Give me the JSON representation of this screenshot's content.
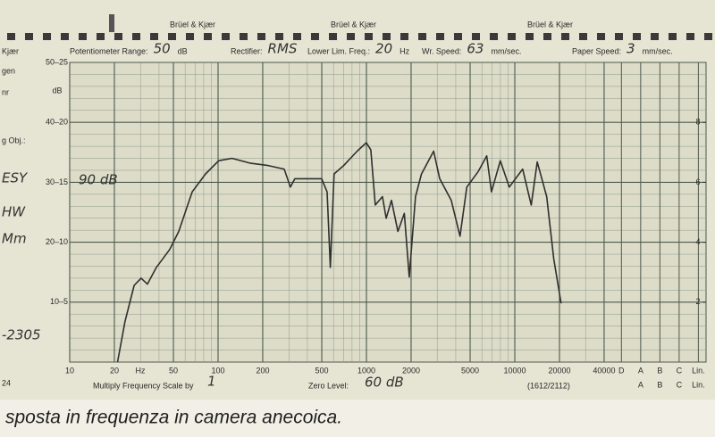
{
  "header": {
    "brands": [
      "Brüel & Kjær",
      "Brüel & Kjær",
      "Brüel & Kjær"
    ],
    "settings": [
      {
        "label": "Potentiometer Range:",
        "value": "50",
        "unit": "dB"
      },
      {
        "label": "Rectifier:",
        "value": "RMS"
      },
      {
        "label": "Lower Lim. Freq.:",
        "value": "20",
        "unit": "Hz"
      },
      {
        "label": "Wr. Speed:",
        "value": "63",
        "unit": "mm/sec."
      },
      {
        "label": "Paper Speed:",
        "value": "3",
        "unit": "mm/sec."
      }
    ]
  },
  "margin_notes": [
    "Kjær",
    "gen",
    "nr",
    "g Obj.:",
    "ESY",
    "HW",
    "Mm",
    "-2305",
    "24"
  ],
  "footer": {
    "multiply_label": "Multiply Frequency Scale by",
    "multiply_value": "1",
    "zero_label": "Zero Level:",
    "zero_value": "60 dB",
    "code": "(1612/2112)"
  },
  "caption": "sposta in frequenza in camera anecoica.",
  "chart_data": {
    "type": "line",
    "annotation": "90 dB",
    "log_x": true,
    "grid": true,
    "color": "#2f2f2f",
    "x": [
      21,
      23.6,
      27.2,
      30.3,
      33.4,
      38.4,
      47.2,
      54.3,
      66.9,
      82.3,
      101,
      124,
      164,
      217,
      279,
      307,
      329,
      499,
      543,
      571,
      605,
      703,
      866,
      998,
      1070,
      1147,
      1282,
      1359,
      1475,
      1630,
      1800,
      1943,
      2142,
      2350,
      2837,
      3120,
      3730,
      4275,
      4750,
      5670,
      6470,
      6960,
      7990,
      9170,
      11300,
      12900,
      14170,
      16400,
      18300,
      20500
    ],
    "values": [
      0,
      3.4,
      6.4,
      7.0,
      6.5,
      7.9,
      9.4,
      10.9,
      14.2,
      15.7,
      16.8,
      17.0,
      16.6,
      16.4,
      16.1,
      14.6,
      15.3,
      15.3,
      14.2,
      7.9,
      15.7,
      16.4,
      17.6,
      18.3,
      17.7,
      13.1,
      13.8,
      12.0,
      13.5,
      10.9,
      12.4,
      7.1,
      13.8,
      15.7,
      17.6,
      15.3,
      13.5,
      10.5,
      14.6,
      15.9,
      17.2,
      14.2,
      16.8,
      14.6,
      16.1,
      13.1,
      16.7,
      13.8,
      8.6,
      4.9
    ],
    "xlim": [
      10,
      40000
    ],
    "xticks": [
      10,
      20,
      50,
      100,
      200,
      500,
      1000,
      2000,
      5000,
      10000,
      20000,
      40000
    ],
    "x_unit_label": "Hz",
    "filter_labels": [
      "D",
      "A",
      "B",
      "C",
      "Lin."
    ],
    "filter_labels_lower": [
      "A",
      "B",
      "C",
      "Lin."
    ],
    "ylim": [
      0,
      25
    ],
    "yticks": [
      {
        "value": 5,
        "label": "10–5"
      },
      {
        "value": 10,
        "label": "20–10"
      },
      {
        "value": 15,
        "label": "30–15"
      },
      {
        "value": 20,
        "label": "40–20"
      },
      {
        "value": 25,
        "label": "50–25"
      }
    ],
    "y_unit_label": "dB",
    "y2lim": [
      0,
      10
    ],
    "y2ticks": [
      2,
      4,
      6,
      8
    ]
  }
}
